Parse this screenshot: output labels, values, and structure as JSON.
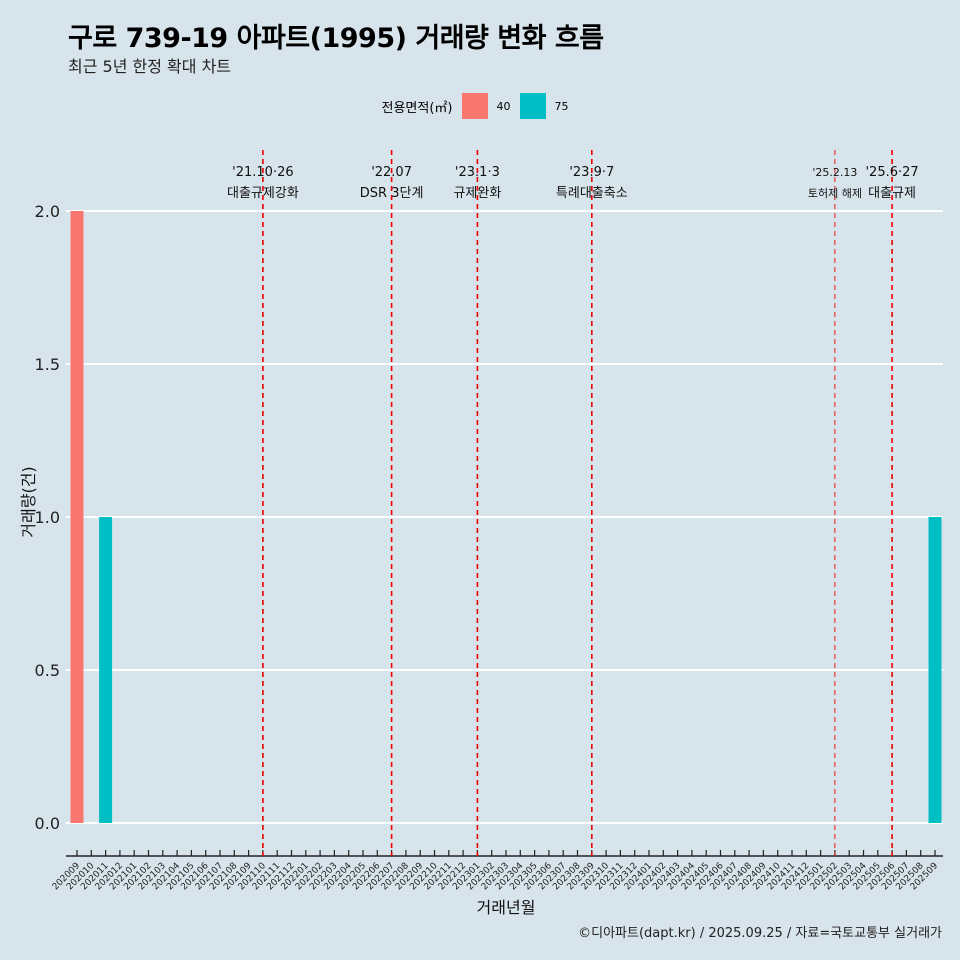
{
  "title": "구로 739-19 아파트(1995) 거래량 변화 흐름",
  "subtitle": "최근 5년 한정 확대 차트",
  "caption": "©디아파트(dapt.kr) / 2025.09.25 / 자료=국토교통부 실거래가",
  "colors": {
    "background": "#d8e4eb",
    "area_40": "#f8766d",
    "area_75": "#00bfc4",
    "event_line": "#ee0000",
    "grid": "#ffffff"
  },
  "legend": {
    "title": "전용면적(㎡)",
    "items": [
      {
        "label": "40",
        "color": "#f8766d"
      },
      {
        "label": "75",
        "color": "#00bfc4"
      }
    ]
  },
  "chart_data": {
    "type": "bar",
    "xlabel": "거래년월",
    "ylabel": "거래량(건)",
    "ylim": [
      0,
      2
    ],
    "yticks": [
      "0.0",
      "0.5",
      "1.0",
      "1.5",
      "2.0"
    ],
    "categories": [
      "202009",
      "202010",
      "202011",
      "202012",
      "202101",
      "202102",
      "202103",
      "202104",
      "202105",
      "202106",
      "202107",
      "202108",
      "202109",
      "202110",
      "202111",
      "202112",
      "202201",
      "202202",
      "202203",
      "202204",
      "202205",
      "202206",
      "202207",
      "202208",
      "202209",
      "202210",
      "202211",
      "202212",
      "202301",
      "202302",
      "202303",
      "202304",
      "202305",
      "202306",
      "202307",
      "202308",
      "202309",
      "202310",
      "202311",
      "202312",
      "202401",
      "202402",
      "202403",
      "202404",
      "202405",
      "202406",
      "202407",
      "202408",
      "202409",
      "202410",
      "202411",
      "202412",
      "202501",
      "202502",
      "202503",
      "202504",
      "202505",
      "202506",
      "202507",
      "202508",
      "202509"
    ],
    "series": [
      {
        "name": "40",
        "bars": [
          {
            "x": "202009",
            "value": 2
          }
        ]
      },
      {
        "name": "75",
        "bars": [
          {
            "x": "202011",
            "value": 1
          },
          {
            "x": "202509",
            "value": 1
          }
        ]
      }
    ],
    "events": [
      {
        "x": "202110",
        "date": "'21.10·26",
        "label": "대출규제강화",
        "style": "bold"
      },
      {
        "x": "202207",
        "date": "'22.07",
        "label": "DSR 3단계",
        "style": "bold"
      },
      {
        "x": "202301",
        "date": "'23.1·3",
        "label": "규제완화",
        "style": "bold"
      },
      {
        "x": "202309",
        "date": "'23.9·7",
        "label": "특례대출축소",
        "style": "bold"
      },
      {
        "x": "202502",
        "date": "'25.2.13",
        "label": "토허제 해제",
        "style": "thin"
      },
      {
        "x": "202506",
        "date": "'25.6·27",
        "label": "대출규제",
        "style": "bold"
      }
    ]
  }
}
